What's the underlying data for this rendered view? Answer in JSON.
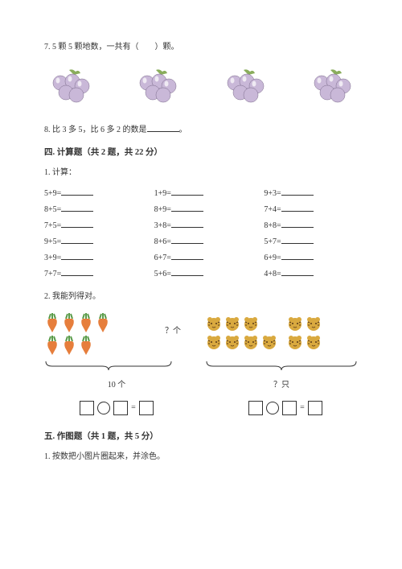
{
  "q7": {
    "text": "7. 5 颗 5 颗地数，一共有（　　）颗。",
    "grape_count": 4,
    "grape_color": "#c9b8d8",
    "grape_outline": "#7a6a8a",
    "leaf_color": "#8aad5c"
  },
  "q8": {
    "prefix": "8. 比 3 多 5，比 6 多 2 的数是",
    "suffix": "。"
  },
  "section4_title": "四. 计算题（共 2 题，共 22 分）",
  "calc_label": "1. 计算：",
  "calc": [
    "5+9=",
    "1+9=",
    "9+3=",
    "8+5=",
    "8+9=",
    "7+4=",
    "7+5=",
    "3+8=",
    "8+8=",
    "9+5=",
    "8+6=",
    "5+7=",
    "3+9=",
    "6+7=",
    "6+9=",
    "7+7=",
    "5+6=",
    "4+8="
  ],
  "q2_label": "2. 我能列得对。",
  "diagram1": {
    "question_mark": "？个",
    "carrot_rows": [
      4,
      3
    ],
    "carrot_body": "#e67e3c",
    "carrot_leaf": "#5a9c4a",
    "bracket_label": "10 个"
  },
  "diagram2": {
    "tiger_groups": [
      [
        3,
        4
      ],
      [
        2,
        2
      ]
    ],
    "tiger_body": "#d9a93f",
    "tiger_stripe": "#5a3a1a",
    "bracket_label": "？只"
  },
  "equation_eq": "=",
  "section5_title": "五. 作图题（共 1 题，共 5 分）",
  "q5_1": "1. 按数把小图片圈起来，并涂色。"
}
